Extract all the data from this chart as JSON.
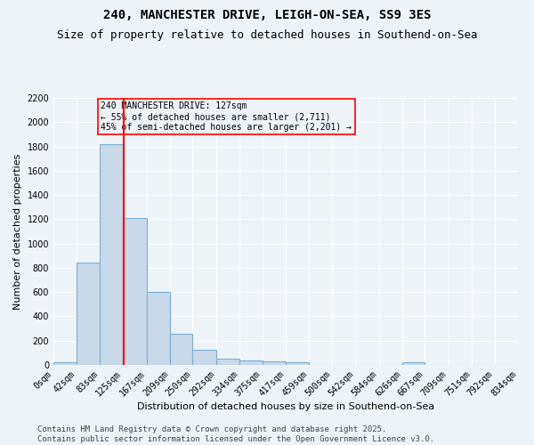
{
  "title1": "240, MANCHESTER DRIVE, LEIGH-ON-SEA, SS9 3ES",
  "title2": "Size of property relative to detached houses in Southend-on-Sea",
  "xlabel": "Distribution of detached houses by size in Southend-on-Sea",
  "ylabel": "Number of detached properties",
  "footer1": "Contains HM Land Registry data © Crown copyright and database right 2025.",
  "footer2": "Contains public sector information licensed under the Open Government Licence v3.0.",
  "annotation_title": "240 MANCHESTER DRIVE: 127sqm",
  "annotation_line1": "← 55% of detached houses are smaller (2,711)",
  "annotation_line2": "45% of semi-detached houses are larger (2,201) →",
  "property_size": 127,
  "bar_edges": [
    0,
    42,
    83,
    125,
    167,
    209,
    250,
    292,
    334,
    375,
    417,
    459,
    500,
    542,
    584,
    626,
    667,
    709,
    751,
    792,
    834
  ],
  "bar_heights": [
    25,
    845,
    1820,
    1210,
    600,
    260,
    125,
    50,
    40,
    30,
    20,
    0,
    0,
    0,
    0,
    25,
    0,
    0,
    0,
    0
  ],
  "bar_color": "#c9d9ea",
  "bar_edge_color": "#7bafd4",
  "vline_color": "red",
  "vline_x": 127,
  "annotation_box_color": "red",
  "ylim": [
    0,
    2200
  ],
  "yticks": [
    0,
    200,
    400,
    600,
    800,
    1000,
    1200,
    1400,
    1600,
    1800,
    2000,
    2200
  ],
  "background_color": "#eef3f8",
  "grid_color": "#ffffff",
  "title_fontsize": 10,
  "subtitle_fontsize": 9,
  "axis_fontsize": 8,
  "tick_fontsize": 7,
  "footer_fontsize": 6.5
}
